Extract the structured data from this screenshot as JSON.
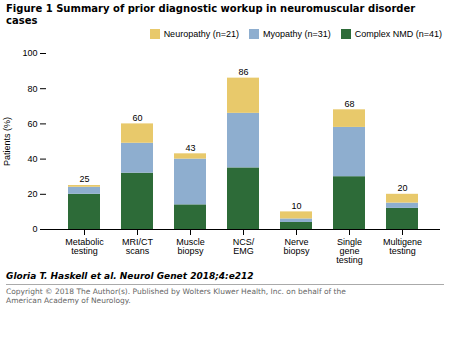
{
  "chart_data": {
    "type": "bar",
    "stacked": true,
    "title": "Figure 1 Summary of prior diagnostic workup in neuromuscular disorder cases",
    "ylabel": "Patients (%)",
    "categories": [
      "Metabolic\ntesting",
      "MRI/CT\nscans",
      "Muscle\nbiopsy",
      "NCS/\nEMG",
      "Nerve\nbiopsy",
      "Single\ngene\ntesting",
      "Multigene\ntesting"
    ],
    "series": [
      {
        "name": "Complex NMD (n=41)",
        "color": "#2d6b38",
        "values": [
          20,
          32,
          14,
          35,
          4,
          30,
          12
        ]
      },
      {
        "name": "Myopathy (n=31)",
        "color": "#8eaecf",
        "values": [
          4,
          17,
          26,
          31,
          2,
          28,
          3
        ]
      },
      {
        "name": "Neuropathy (n=21)",
        "color": "#e8c96b",
        "values": [
          1,
          11,
          3,
          20,
          4,
          10,
          5
        ]
      }
    ],
    "totals": [
      25,
      60,
      43,
      86,
      10,
      68,
      20
    ],
    "ylim": [
      0,
      100
    ],
    "yticks": [
      0,
      20,
      40,
      60,
      80,
      100
    ],
    "legend": "upper right",
    "annotations": [
      "Gloria T. Haskell et al. Neurol Genet 2018;4:e212",
      "Copyright © 2018 The Author(s). Published by Wolters Kluwer Health, Inc. on behalf of the\nAmerican Academy of Neurology."
    ]
  }
}
